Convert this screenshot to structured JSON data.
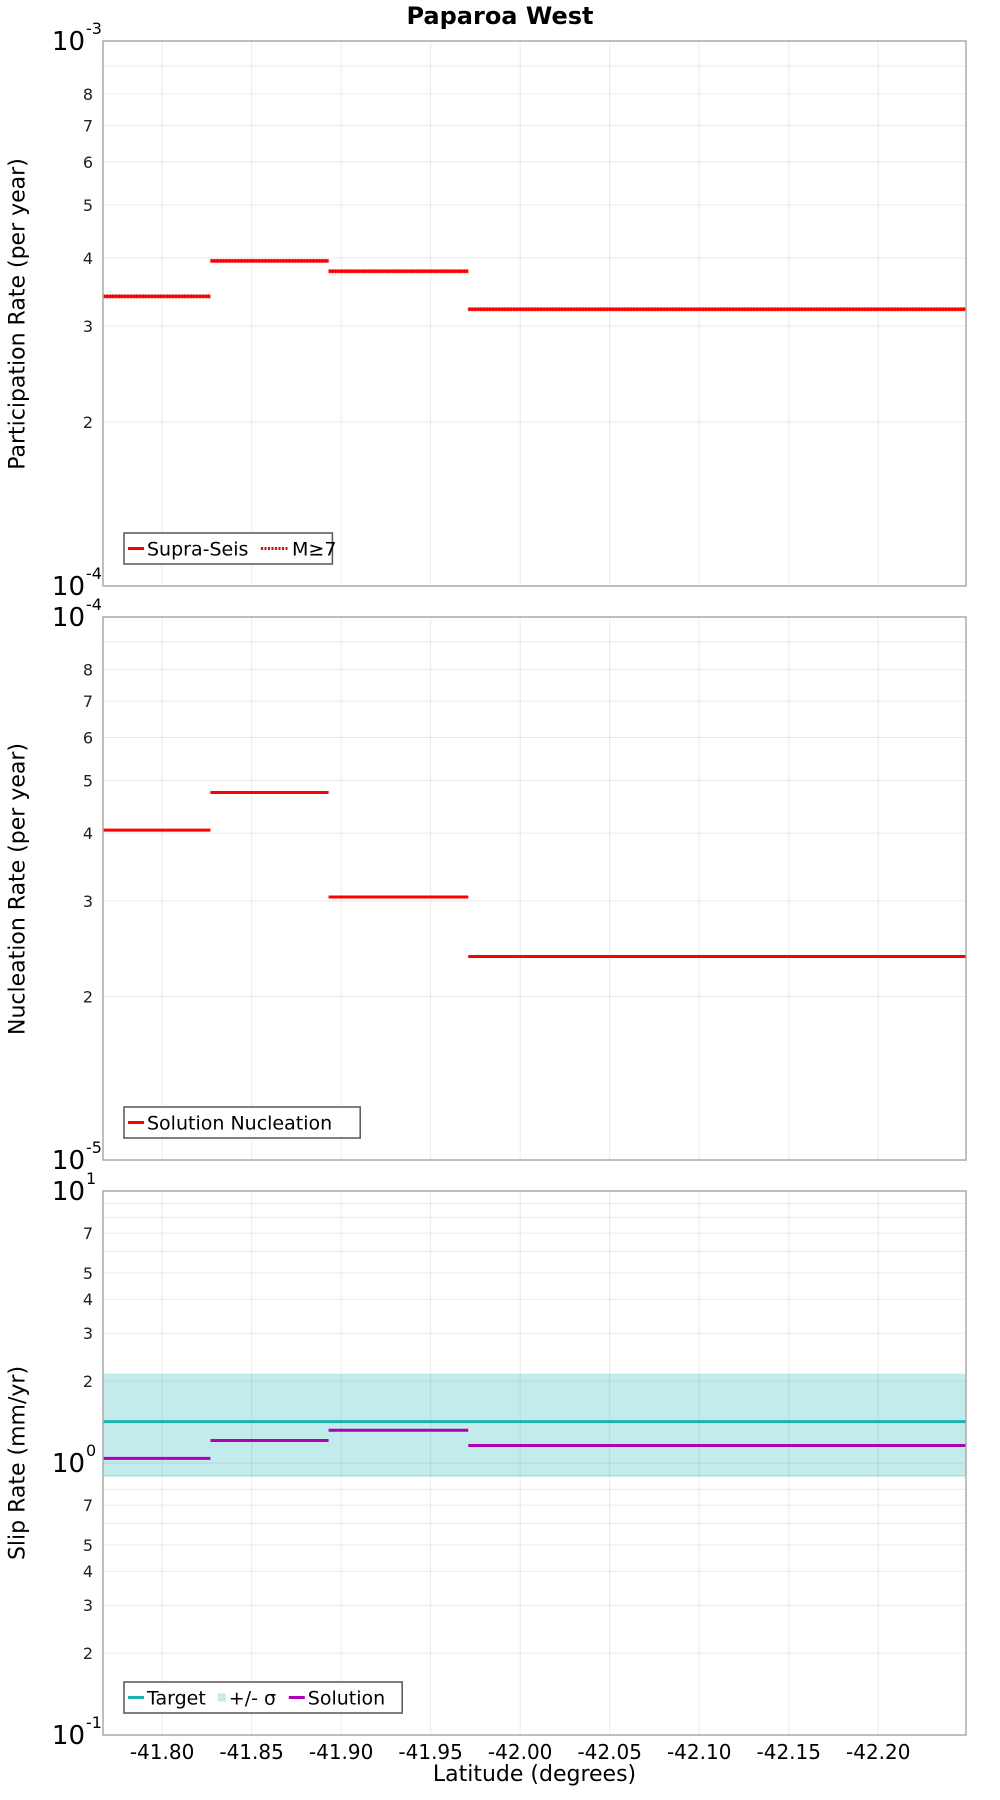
{
  "chart_data": [
    {
      "type": "line",
      "title": "Paparoa West",
      "panel": "participation",
      "xlabel": "Latitude (degrees)",
      "ylabel": "Participation Rate (per year)",
      "yscale": "log",
      "ylim": [
        0.0001,
        0.001
      ],
      "xlim": [
        -41.767,
        -42.249
      ],
      "grid": true,
      "legend_position": "lower-left",
      "y_tick_labels": [
        "10^-4",
        "2",
        "3",
        "4",
        "5",
        "6",
        "7",
        "8",
        "10^-3"
      ],
      "series": [
        {
          "name": "Supra-Seis",
          "style": "solid",
          "color": "#ff0000",
          "segments": [
            {
              "x0": -41.767,
              "x1": -41.827,
              "y": 0.00034
            },
            {
              "x0": -41.827,
              "x1": -41.893,
              "y": 0.000395
            },
            {
              "x0": -41.893,
              "x1": -41.971,
              "y": 0.000378
            },
            {
              "x0": -41.971,
              "x1": -42.249,
              "y": 0.000322
            }
          ]
        },
        {
          "name": "M≥7",
          "style": "dotted",
          "color": "#ff0000",
          "segments": [
            {
              "x0": -41.767,
              "x1": -41.827,
              "y": 0.00034
            },
            {
              "x0": -41.827,
              "x1": -41.893,
              "y": 0.000395
            },
            {
              "x0": -41.893,
              "x1": -41.971,
              "y": 0.000378
            },
            {
              "x0": -41.971,
              "x1": -42.249,
              "y": 0.000322
            }
          ]
        }
      ]
    },
    {
      "type": "line",
      "panel": "nucleation",
      "xlabel": "Latitude (degrees)",
      "ylabel": "Nucleation Rate (per year)",
      "yscale": "log",
      "ylim": [
        1e-05,
        0.0001
      ],
      "xlim": [
        -41.767,
        -42.249
      ],
      "grid": true,
      "legend_position": "lower-left",
      "y_tick_labels": [
        "10^-5",
        "2",
        "3",
        "4",
        "5",
        "6",
        "7",
        "8",
        "10^-4"
      ],
      "series": [
        {
          "name": "Solution Nucleation",
          "style": "solid",
          "color": "#ff0000",
          "segments": [
            {
              "x0": -41.767,
              "x1": -41.827,
              "y": 4.05e-05
            },
            {
              "x0": -41.827,
              "x1": -41.893,
              "y": 4.75e-05
            },
            {
              "x0": -41.893,
              "x1": -41.971,
              "y": 3.05e-05
            },
            {
              "x0": -41.971,
              "x1": -42.249,
              "y": 2.37e-05
            }
          ]
        }
      ]
    },
    {
      "type": "line",
      "panel": "slip-rate",
      "xlabel": "Latitude (degrees)",
      "ylabel": "Slip Rate (mm/yr)",
      "yscale": "log",
      "ylim": [
        0.1,
        10
      ],
      "xlim": [
        -41.767,
        -42.249
      ],
      "grid": true,
      "legend_position": "lower-left",
      "y_tick_labels": [
        "10^-1",
        "2",
        "3",
        "4",
        "5",
        "7",
        "10^0",
        "2",
        "3",
        "4",
        "5",
        "7",
        "10^1"
      ],
      "series": [
        {
          "name": "Target",
          "style": "solid",
          "color": "#1ab5b0",
          "segments": [
            {
              "x0": -41.767,
              "x1": -42.249,
              "y": 1.42
            }
          ]
        },
        {
          "name": "+/- σ",
          "style": "band",
          "color": "#c2ecec",
          "segments": [
            {
              "x0": -41.767,
              "x1": -42.249,
              "y_low": 0.89,
              "y_high": 2.13
            }
          ]
        },
        {
          "name": "Solution",
          "style": "solid",
          "color": "#b000b8",
          "segments": [
            {
              "x0": -41.767,
              "x1": -41.827,
              "y": 1.04
            },
            {
              "x0": -41.827,
              "x1": -41.893,
              "y": 1.21
            },
            {
              "x0": -41.893,
              "x1": -41.971,
              "y": 1.32
            },
            {
              "x0": -41.971,
              "x1": -42.249,
              "y": 1.16
            }
          ]
        }
      ]
    }
  ],
  "title": "Paparoa West",
  "x_axis": {
    "label": "Latitude (degrees)",
    "ticks": [
      "-41.80",
      "-41.85",
      "-41.90",
      "-41.95",
      "-42.00",
      "-42.05",
      "-42.10",
      "-42.15",
      "-42.20"
    ]
  },
  "panels": {
    "top": {
      "ylabel": "Participation Rate (per year)",
      "ymax_base": "10",
      "ymax_exp": "-3",
      "ymin_base": "10",
      "ymin_exp": "-4",
      "legend": {
        "item1": "Supra-Seis",
        "item2": "M≥7"
      }
    },
    "middle": {
      "ylabel": "Nucleation Rate (per year)",
      "ymax_base": "10",
      "ymax_exp": "-4",
      "ymin_base": "10",
      "ymin_exp": "-5",
      "legend": {
        "item1": "Solution Nucleation"
      }
    },
    "bottom": {
      "ylabel": "Slip Rate (mm/yr)",
      "ymax_base": "10",
      "ymax_exp": "1",
      "ymid_base": "10",
      "ymid_exp": "0",
      "ymin_base": "10",
      "ymin_exp": "-1",
      "legend": {
        "item1": "Target",
        "item2": "+/- σ",
        "item3": "Solution"
      }
    }
  },
  "colors": {
    "red": "#ff0000",
    "target": "#1ab5b0",
    "band": "#c2ecec",
    "solution": "#b000b8",
    "grid": "#ebebeb",
    "frame": "#aaaaaa"
  }
}
